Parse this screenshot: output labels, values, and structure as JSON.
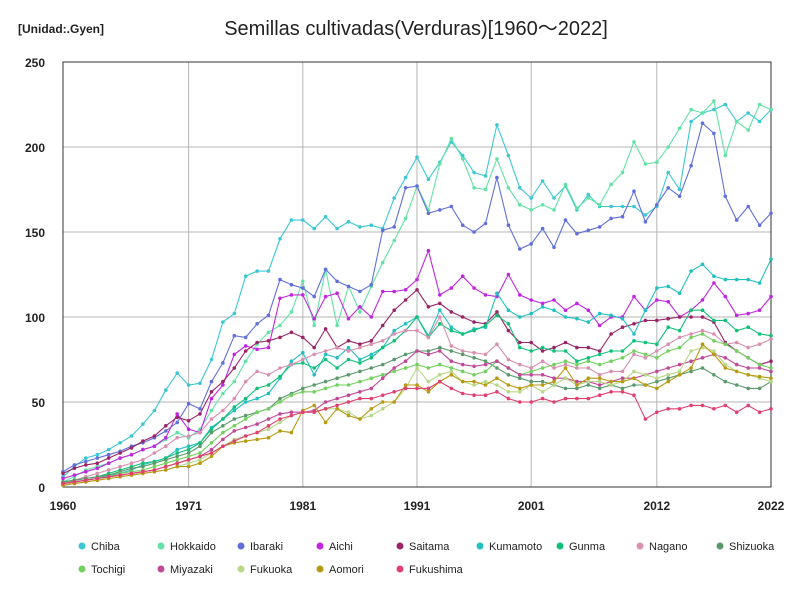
{
  "chart_data": {
    "type": "line",
    "title": "Semillas cultivadas(Verduras)[1960～2022]",
    "unit_label": "[Unidad:.Gyen]",
    "xlabel": "",
    "ylabel": "",
    "xlim": [
      1960,
      2022
    ],
    "ylim": [
      0,
      250
    ],
    "x_ticks": [
      1960,
      1971,
      1981,
      1991,
      2001,
      2012,
      2022
    ],
    "y_ticks": [
      0,
      50,
      100,
      150,
      200,
      250
    ],
    "grid": true,
    "legend_position": "bottom",
    "years": [
      1960,
      1961,
      1962,
      1963,
      1964,
      1965,
      1966,
      1967,
      1968,
      1969,
      1970,
      1971,
      1972,
      1973,
      1974,
      1975,
      1976,
      1977,
      1978,
      1979,
      1980,
      1981,
      1982,
      1983,
      1984,
      1985,
      1986,
      1987,
      1988,
      1989,
      1990,
      1991,
      1992,
      1993,
      1994,
      1995,
      1996,
      1997,
      1998,
      1999,
      2000,
      2001,
      2002,
      2003,
      2004,
      2005,
      2006,
      2007,
      2008,
      2009,
      2010,
      2011,
      2012,
      2013,
      2014,
      2015,
      2016,
      2017,
      2018,
      2019,
      2020,
      2021,
      2022
    ],
    "series": [
      {
        "name": "Chiba",
        "color": "#3cc8d2",
        "values": [
          6,
          12,
          17,
          19,
          22,
          26,
          30,
          37,
          45,
          57,
          67,
          60,
          61,
          75,
          97,
          102,
          124,
          127,
          127,
          146,
          157,
          157,
          152,
          159,
          152,
          156,
          153,
          154,
          152,
          170,
          182,
          194,
          181,
          191,
          203,
          195,
          185,
          183,
          213,
          195,
          176,
          170,
          180,
          170,
          177,
          163,
          172,
          165,
          165,
          165,
          165,
          160,
          165,
          185,
          175,
          215,
          220,
          222,
          225,
          215,
          220,
          215,
          222
        ]
      },
      {
        "name": "Hokkaido",
        "color": "#62e2a6",
        "values": [
          3,
          6,
          10,
          12,
          14,
          17,
          19,
          22,
          24,
          28,
          32,
          29,
          34,
          45,
          55,
          62,
          74,
          84,
          91,
          95,
          103,
          121,
          95,
          128,
          95,
          118,
          103,
          118,
          132,
          145,
          158,
          177,
          163,
          190,
          205,
          193,
          176,
          175,
          193,
          176,
          166,
          163,
          166,
          163,
          178,
          164,
          170,
          166,
          178,
          185,
          203,
          190,
          191,
          200,
          211,
          222,
          220,
          227,
          195,
          215,
          210,
          225,
          222
        ]
      },
      {
        "name": "Ibaraki",
        "color": "#6070d8",
        "values": [
          9,
          13,
          15,
          17,
          19,
          21,
          24,
          26,
          29,
          33,
          38,
          49,
          46,
          62,
          73,
          89,
          88,
          96,
          101,
          122,
          119,
          117,
          112,
          128,
          121,
          118,
          115,
          119,
          151,
          153,
          176,
          177,
          161,
          163,
          165,
          154,
          150,
          155,
          182,
          154,
          140,
          143,
          152,
          141,
          157,
          149,
          151,
          153,
          158,
          159,
          174,
          156,
          166,
          176,
          171,
          189,
          214,
          208,
          171,
          157,
          165,
          154,
          161
        ]
      },
      {
        "name": "Aichi",
        "color": "#c026e0",
        "values": [
          5,
          7,
          9,
          11,
          14,
          17,
          19,
          22,
          24,
          29,
          43,
          34,
          32,
          52,
          60,
          78,
          83,
          81,
          82,
          111,
          113,
          113,
          99,
          112,
          114,
          99,
          106,
          100,
          115,
          115,
          116,
          122,
          139,
          113,
          117,
          124,
          117,
          113,
          112,
          125,
          113,
          110,
          108,
          110,
          104,
          108,
          104,
          95,
          100,
          100,
          112,
          104,
          110,
          109,
          100,
          104,
          110,
          120,
          112,
          101,
          102,
          104,
          112
        ]
      },
      {
        "name": "Saitama",
        "color": "#9a2468",
        "values": [
          8,
          11,
          13,
          14,
          17,
          20,
          23,
          27,
          30,
          36,
          41,
          39,
          43,
          56,
          62,
          70,
          80,
          85,
          86,
          88,
          91,
          88,
          82,
          93,
          82,
          86,
          84,
          86,
          95,
          104,
          110,
          116,
          106,
          108,
          103,
          100,
          97,
          96,
          103,
          92,
          85,
          85,
          80,
          82,
          85,
          82,
          82,
          80,
          90,
          94,
          96,
          98,
          98,
          99,
          100,
          100,
          100,
          97,
          85,
          80,
          76,
          72,
          74
        ]
      },
      {
        "name": "Kumamoto",
        "color": "#22c0c0",
        "values": [
          2,
          3,
          4,
          5,
          7,
          8,
          10,
          13,
          15,
          17,
          22,
          24,
          26,
          35,
          40,
          45,
          50,
          52,
          55,
          64,
          74,
          79,
          66,
          78,
          76,
          82,
          75,
          78,
          82,
          92,
          96,
          100,
          89,
          104,
          94,
          90,
          93,
          94,
          114,
          104,
          100,
          102,
          106,
          104,
          100,
          99,
          97,
          102,
          101,
          99,
          90,
          104,
          117,
          118,
          114,
          127,
          131,
          124,
          122,
          122,
          122,
          120,
          134
        ]
      },
      {
        "name": "Gunma",
        "color": "#10c078",
        "values": [
          3,
          4,
          5,
          6,
          8,
          10,
          12,
          14,
          15,
          17,
          20,
          22,
          26,
          34,
          40,
          47,
          52,
          58,
          60,
          65,
          72,
          73,
          70,
          75,
          70,
          75,
          73,
          76,
          82,
          86,
          92,
          100,
          88,
          96,
          92,
          90,
          92,
          95,
          101,
          96,
          82,
          80,
          82,
          80,
          80,
          74,
          76,
          78,
          80,
          80,
          86,
          85,
          84,
          94,
          92,
          104,
          104,
          98,
          98,
          92,
          94,
          90,
          89
        ]
      },
      {
        "name": "Nagano",
        "color": "#d890b0",
        "values": [
          2,
          4,
          6,
          8,
          10,
          12,
          14,
          16,
          20,
          24,
          29,
          30,
          32,
          40,
          45,
          52,
          62,
          68,
          66,
          70,
          72,
          75,
          78,
          80,
          82,
          80,
          82,
          84,
          86,
          90,
          92,
          92,
          88,
          100,
          83,
          80,
          79,
          78,
          84,
          75,
          72,
          70,
          74,
          70,
          72,
          70,
          70,
          66,
          68,
          68,
          78,
          76,
          80,
          84,
          88,
          90,
          92,
          90,
          84,
          85,
          82,
          84,
          87
        ]
      },
      {
        "name": "Shizuoka",
        "color": "#5a9a6a",
        "values": [
          3,
          4,
          5,
          6,
          7,
          9,
          11,
          12,
          14,
          16,
          18,
          20,
          24,
          32,
          36,
          40,
          42,
          44,
          46,
          52,
          55,
          58,
          60,
          62,
          64,
          66,
          68,
          70,
          72,
          75,
          78,
          80,
          80,
          82,
          80,
          78,
          76,
          74,
          70,
          66,
          64,
          62,
          62,
          60,
          58,
          58,
          60,
          58,
          60,
          58,
          60,
          60,
          62,
          64,
          66,
          68,
          70,
          66,
          62,
          60,
          58,
          58,
          62
        ]
      },
      {
        "name": "Tochigi",
        "color": "#72d060",
        "values": [
          2,
          3,
          4,
          5,
          6,
          8,
          9,
          10,
          12,
          14,
          16,
          18,
          20,
          26,
          32,
          36,
          40,
          44,
          46,
          50,
          54,
          56,
          56,
          58,
          60,
          60,
          62,
          64,
          66,
          68,
          70,
          72,
          70,
          72,
          70,
          68,
          66,
          68,
          74,
          70,
          66,
          68,
          70,
          72,
          74,
          72,
          74,
          72,
          74,
          76,
          80,
          78,
          76,
          80,
          82,
          88,
          90,
          86,
          84,
          80,
          76,
          72,
          70
        ]
      },
      {
        "name": "Miyazaki",
        "color": "#c04898",
        "values": [
          2,
          3,
          4,
          5,
          6,
          7,
          8,
          9,
          10,
          12,
          14,
          16,
          18,
          22,
          28,
          33,
          35,
          37,
          40,
          43,
          44,
          44,
          45,
          50,
          52,
          54,
          56,
          58,
          64,
          70,
          74,
          80,
          78,
          80,
          74,
          72,
          71,
          72,
          74,
          70,
          66,
          66,
          66,
          64,
          64,
          62,
          62,
          60,
          62,
          64,
          64,
          66,
          68,
          70,
          72,
          74,
          76,
          78,
          76,
          72,
          70,
          70,
          68
        ]
      },
      {
        "name": "Fukuoka",
        "color": "#b8d888",
        "values": [
          1,
          2,
          3,
          4,
          5,
          6,
          7,
          8,
          9,
          10,
          12,
          14,
          16,
          20,
          24,
          28,
          30,
          32,
          34,
          38,
          42,
          44,
          44,
          46,
          46,
          44,
          40,
          42,
          46,
          50,
          58,
          70,
          62,
          66,
          68,
          62,
          60,
          62,
          60,
          56,
          56,
          60,
          56,
          60,
          64,
          60,
          62,
          62,
          60,
          62,
          68,
          66,
          64,
          66,
          68,
          80,
          82,
          80,
          72,
          68,
          66,
          64,
          62
        ]
      },
      {
        "name": "Aomori",
        "color": "#b89a10",
        "values": [
          1,
          2,
          3,
          4,
          5,
          6,
          7,
          8,
          9,
          10,
          12,
          12,
          14,
          18,
          24,
          26,
          27,
          28,
          29,
          33,
          32,
          45,
          48,
          38,
          46,
          42,
          40,
          46,
          50,
          50,
          60,
          60,
          56,
          62,
          66,
          62,
          62,
          60,
          64,
          60,
          58,
          60,
          60,
          62,
          70,
          60,
          64,
          64,
          62,
          62,
          64,
          60,
          58,
          62,
          66,
          70,
          84,
          78,
          70,
          68,
          66,
          65,
          64
        ]
      },
      {
        "name": "Fukushima",
        "color": "#e04070",
        "values": [
          2,
          3,
          4,
          5,
          6,
          7,
          8,
          9,
          10,
          12,
          14,
          16,
          18,
          20,
          24,
          27,
          30,
          32,
          36,
          40,
          42,
          44,
          44,
          46,
          48,
          50,
          52,
          52,
          54,
          56,
          58,
          58,
          58,
          62,
          58,
          55,
          54,
          54,
          56,
          52,
          50,
          50,
          52,
          50,
          52,
          52,
          52,
          54,
          56,
          56,
          54,
          40,
          44,
          46,
          46,
          48,
          48,
          46,
          48,
          44,
          48,
          44,
          46
        ]
      }
    ]
  }
}
